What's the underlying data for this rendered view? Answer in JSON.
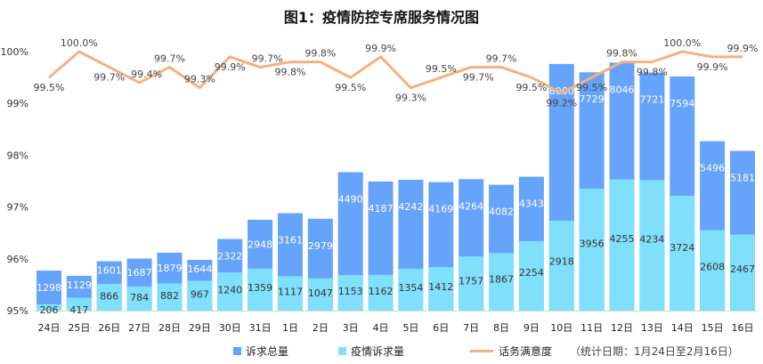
{
  "title": "图1：疫情防控专席服务情况图",
  "colors": {
    "total": "#66a3fa",
    "epidemic": "#80e0fc",
    "satisfaction": "#f4b183"
  },
  "legend": {
    "total": "诉求总量",
    "epidemic": "疫情诉求量",
    "satisfaction": "话务满意度",
    "note": "（统计日期：1月24日至2月16日）"
  },
  "chart_data": {
    "type": "bar",
    "title": "图1：疫情防控专席服务情况图",
    "categories": [
      "24日",
      "25日",
      "26日",
      "27日",
      "28日",
      "29日",
      "30日",
      "31日",
      "1日",
      "2日",
      "3日",
      "4日",
      "5日",
      "6日",
      "7日",
      "8日",
      "9日",
      "10日",
      "11日",
      "12日",
      "13日",
      "14日",
      "15日",
      "16日"
    ],
    "series": [
      {
        "name": "诉求总量",
        "type": "bar",
        "values": [
          1298,
          1129,
          1601,
          1687,
          1879,
          1644,
          2322,
          2948,
          3161,
          2979,
          4490,
          4187,
          4242,
          4169,
          4264,
          4082,
          4343,
          8000,
          7729,
          8046,
          7721,
          7594,
          5496,
          5181
        ]
      },
      {
        "name": "疫情诉求量",
        "type": "bar",
        "values": [
          206,
          417,
          866,
          784,
          882,
          967,
          1240,
          1359,
          1117,
          1047,
          1153,
          1162,
          1354,
          1412,
          1757,
          1867,
          2254,
          2918,
          3956,
          4255,
          4234,
          3724,
          2608,
          2467
        ]
      },
      {
        "name": "话务满意度",
        "type": "line",
        "axis": "left",
        "values": [
          99.5,
          100.0,
          99.7,
          99.4,
          99.7,
          99.3,
          99.9,
          99.7,
          99.8,
          99.8,
          99.5,
          99.9,
          99.3,
          99.5,
          99.7,
          99.7,
          99.5,
          99.2,
          99.5,
          99.8,
          99.8,
          100.0,
          99.9,
          99.9
        ]
      }
    ],
    "y_left": {
      "ticks": [
        "95%",
        "96%",
        "97%",
        "98%",
        "99%",
        "100%"
      ],
      "range": [
        95,
        100
      ]
    },
    "grid": false,
    "legend_position": "bottom"
  }
}
